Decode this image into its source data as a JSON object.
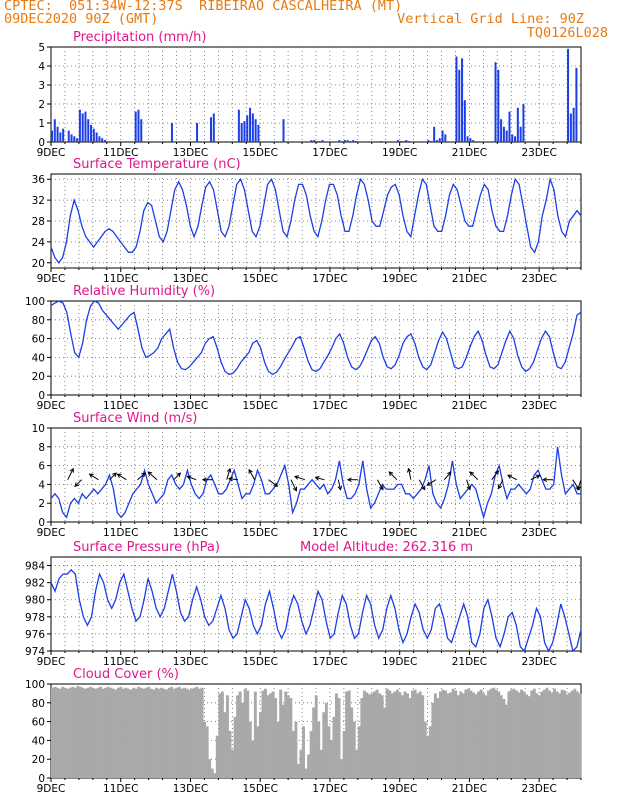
{
  "header": {
    "line1": "CPTEC:  051:34W-12:37S  RIBEIRAO CASCALHEIRA (MT)",
    "line2_left": "09DEC2020 90Z (GMT)",
    "line2_right": "Vertical Grid Line: 90Z",
    "line3_right": "TQ0126L028"
  },
  "model_altitude": "Model Altitude: 262.316 m",
  "colors": {
    "header": "#e87a10",
    "title": "#e0168c",
    "line": "#1c3ee6",
    "bar": "#1c3ee6",
    "cloud": "#a9a9a9"
  },
  "chart_data": [
    {
      "id": "precip",
      "type": "bar",
      "title": "Precipitation (mm/h)",
      "x_ticks": [
        "9DEC",
        "11DEC",
        "13DEC",
        "15DEC",
        "17DEC",
        "19DEC",
        "21DEC",
        "23DEC"
      ],
      "ylim": [
        0,
        5
      ],
      "y_ticks": [
        0,
        1,
        2,
        3,
        4,
        5
      ],
      "x": [
        0,
        0.2,
        0.4,
        0.6,
        0.8,
        1.2,
        1.4,
        1.6,
        1.8,
        2.0,
        2.2,
        2.4,
        2.6,
        2.8,
        3.0,
        3.2,
        3.4,
        3.6,
        3.8,
        6.0,
        6.2,
        6.4,
        8.6,
        10.4,
        11.4,
        11.6,
        13.4,
        13.6,
        13.8,
        14.0,
        14.2,
        14.4,
        14.6,
        14.8,
        16.6,
        18.6,
        18.8,
        19.0,
        19.2,
        19.4,
        20.6,
        20.8,
        21.0,
        21.2,
        21.4,
        21.6,
        21.8,
        23.6,
        24.8,
        25.0,
        25.2,
        25.4,
        25.6,
        27.0,
        27.2,
        27.4,
        27.6,
        27.8,
        28.0,
        28.2,
        29.0,
        29.2,
        29.4,
        29.6,
        29.8,
        30.0,
        30.2,
        31.8,
        32.0,
        32.2,
        32.4,
        32.6,
        32.8,
        33.0,
        33.2,
        33.4,
        33.6,
        33.8,
        37.0,
        37.2,
        37.4,
        37.6
      ],
      "values": [
        0.6,
        1.2,
        0.8,
        0.5,
        0.7,
        0.6,
        0.4,
        0.3,
        0.2,
        1.7,
        1.5,
        1.6,
        1.2,
        0.9,
        0.7,
        0.5,
        0.3,
        0.2,
        0.1,
        1.6,
        1.7,
        1.2,
        1.0,
        1.0,
        1.3,
        1.5,
        1.7,
        1.0,
        1.1,
        1.4,
        1.8,
        1.5,
        1.2,
        0.9,
        1.2,
        0.1,
        0.1,
        0.05,
        0.05,
        0.1,
        0.1,
        0.05,
        0.1,
        0.1,
        0.05,
        0.1,
        0.05,
        0.05,
        0.1,
        0.05,
        0.05,
        0.1,
        0.05,
        0.1,
        0.05,
        0.8,
        0.1,
        0.2,
        0.6,
        0.4,
        4.5,
        3.8,
        4.4,
        2.2,
        0.3,
        0.2,
        0.1,
        4.2,
        3.8,
        1.2,
        0.8,
        0.6,
        1.6,
        0.4,
        0.3,
        1.8,
        0.8,
        2.0,
        4.9,
        1.5,
        1.8,
        3.9
      ]
    },
    {
      "id": "temp",
      "type": "line",
      "title": "Surface Temperature (nC)",
      "x_ticks": [
        "9DEC",
        "11DEC",
        "13DEC",
        "15DEC",
        "17DEC",
        "19DEC",
        "21DEC",
        "23DEC"
      ],
      "ylim": [
        19,
        37
      ],
      "y_ticks": [
        20,
        24,
        28,
        32,
        36
      ],
      "values": [
        23,
        21,
        20,
        21,
        24,
        29,
        32,
        30,
        27,
        25,
        24,
        23,
        24,
        25,
        26,
        26.5,
        26,
        25,
        24,
        23,
        22,
        22,
        23,
        26,
        30,
        31.5,
        31,
        28,
        25,
        24,
        26,
        30,
        34,
        35.5,
        34,
        31,
        27,
        25,
        27,
        31,
        34.5,
        35.5,
        34,
        30,
        26,
        25,
        27,
        31,
        35,
        36,
        34,
        30,
        26,
        25,
        27,
        31,
        35,
        36,
        34,
        30,
        26,
        25,
        28,
        32,
        35,
        35,
        33,
        29,
        26,
        25,
        28,
        32,
        35,
        35,
        33,
        29,
        26,
        26,
        29,
        33,
        36,
        35,
        32,
        28,
        27,
        27,
        30,
        33,
        34.5,
        35,
        33,
        29,
        26,
        25,
        29,
        33,
        36,
        35,
        31,
        27,
        26,
        26,
        29,
        33,
        35,
        34,
        31,
        28,
        27,
        27,
        30,
        33,
        35,
        34,
        30,
        27,
        26,
        26,
        29,
        33,
        36,
        35,
        31,
        27,
        23,
        22,
        24,
        29,
        32,
        36,
        34,
        29,
        26,
        25,
        28,
        29,
        30,
        29
      ],
      "x_start": 0,
      "x_step": 0.28
    },
    {
      "id": "rh",
      "type": "line",
      "title": "Relative Humidity (%)",
      "x_ticks": [
        "9DEC",
        "11DEC",
        "13DEC",
        "15DEC",
        "17DEC",
        "19DEC",
        "21DEC",
        "23DEC"
      ],
      "ylim": [
        0,
        100
      ],
      "y_ticks": [
        0,
        20,
        40,
        60,
        80,
        100
      ],
      "values": [
        95,
        98,
        100,
        98,
        88,
        65,
        45,
        40,
        55,
        80,
        95,
        100,
        98,
        90,
        85,
        80,
        75,
        70,
        75,
        80,
        85,
        88,
        70,
        50,
        40,
        42,
        45,
        50,
        60,
        65,
        70,
        50,
        35,
        28,
        27,
        30,
        35,
        40,
        45,
        55,
        60,
        62,
        50,
        35,
        25,
        22,
        23,
        28,
        35,
        40,
        45,
        55,
        58,
        50,
        35,
        25,
        22,
        24,
        30,
        38,
        45,
        52,
        60,
        62,
        50,
        36,
        27,
        25,
        28,
        35,
        42,
        50,
        60,
        65,
        55,
        40,
        30,
        27,
        30,
        38,
        48,
        58,
        62,
        55,
        40,
        30,
        28,
        32,
        42,
        55,
        62,
        65,
        55,
        40,
        30,
        27,
        32,
        45,
        58,
        67,
        60,
        45,
        30,
        28,
        30,
        40,
        52,
        62,
        68,
        58,
        42,
        30,
        28,
        32,
        45,
        58,
        68,
        60,
        42,
        30,
        25,
        28,
        35,
        48,
        60,
        68,
        62,
        45,
        30,
        28,
        35,
        50,
        65,
        85,
        88
      ],
      "x_start": 0,
      "x_step": 0.28
    },
    {
      "id": "wind",
      "type": "line",
      "title": "Surface Wind (m/s)",
      "x_ticks": [
        "9DEC",
        "11DEC",
        "13DEC",
        "15DEC",
        "17DEC",
        "19DEC",
        "21DEC",
        "23DEC"
      ],
      "ylim": [
        0,
        10
      ],
      "y_ticks": [
        0,
        2,
        4,
        6,
        8,
        10
      ],
      "values": [
        2.5,
        3,
        2.5,
        1,
        0.5,
        2,
        2.5,
        2,
        3,
        2.5,
        3,
        3.5,
        3,
        3.5,
        4,
        5,
        3.5,
        1,
        0.5,
        1,
        2,
        3,
        3.5,
        4,
        5.5,
        4,
        3,
        2,
        2.5,
        3,
        4.5,
        5,
        4,
        3.5,
        4,
        5.5,
        4,
        3,
        2.5,
        3,
        4.5,
        5,
        4,
        3,
        3,
        3.5,
        4.5,
        5.5,
        4,
        2.5,
        3,
        3,
        4,
        5.5,
        4.5,
        3,
        3,
        3.5,
        4,
        5,
        6,
        4,
        1,
        2,
        3.5,
        3.5,
        4,
        4.5,
        4,
        3.5,
        4,
        3,
        3.5,
        4.5,
        6.5,
        4,
        2.5,
        2.5,
        3,
        4,
        6.5,
        3.5,
        1.5,
        2,
        3,
        4,
        3.5,
        3.5,
        3.5,
        4,
        4,
        3,
        3,
        2.5,
        3,
        3.5,
        4.5,
        6,
        3,
        2,
        1.5,
        2.5,
        4,
        6.5,
        4,
        2.5,
        3,
        3.5,
        4,
        3.5,
        2,
        0.5,
        2,
        3,
        5,
        6,
        4,
        2.5,
        3.5,
        3.5,
        4,
        3.5,
        3,
        3.5,
        5,
        5.5,
        4.5,
        3.5,
        3.5,
        4,
        8,
        5,
        3,
        3.5,
        4,
        3,
        3
      ],
      "x_start": 0,
      "x_step": 0.28,
      "arrows": [
        {
          "x": 1.2,
          "u": 0.5,
          "v": 1
        },
        {
          "x": 2.2,
          "u": -0.6,
          "v": -0.6
        },
        {
          "x": 3.4,
          "u": -0.8,
          "v": 0.5
        },
        {
          "x": 4.2,
          "u": 0.6,
          "v": 0.6
        },
        {
          "x": 5.4,
          "u": -0.8,
          "v": 0.5
        },
        {
          "x": 6.2,
          "u": 0.7,
          "v": 0.6
        },
        {
          "x": 7.6,
          "u": -0.8,
          "v": 0.7
        },
        {
          "x": 8.8,
          "u": 0.6,
          "v": 0.6
        },
        {
          "x": 10.4,
          "u": -0.8,
          "v": 0.3
        },
        {
          "x": 11.6,
          "u": -0.9,
          "v": 0
        },
        {
          "x": 12.6,
          "u": 0.3,
          "v": 1
        },
        {
          "x": 13.4,
          "u": -0.8,
          "v": 0.1
        },
        {
          "x": 14.6,
          "u": -0.5,
          "v": 0.9
        },
        {
          "x": 15.6,
          "u": 0.8,
          "v": -0.6
        },
        {
          "x": 17.2,
          "u": 0.5,
          "v": -1
        },
        {
          "x": 18.2,
          "u": -0.9,
          "v": 0.3
        },
        {
          "x": 19.6,
          "u": -0.8,
          "v": 0.2
        },
        {
          "x": 20.6,
          "u": 0.2,
          "v": -0.9
        },
        {
          "x": 22.0,
          "u": -0.9,
          "v": 0
        },
        {
          "x": 23.4,
          "u": 0.5,
          "v": -0.9
        },
        {
          "x": 24.8,
          "u": -0.7,
          "v": 0.7
        },
        {
          "x": 25.8,
          "u": -0.2,
          "v": 1
        },
        {
          "x": 26.4,
          "u": 0.5,
          "v": -0.9
        },
        {
          "x": 27.6,
          "u": -0.8,
          "v": -0.5
        },
        {
          "x": 28.2,
          "u": 0.6,
          "v": 0.7
        },
        {
          "x": 29.8,
          "u": 0.3,
          "v": -0.9
        },
        {
          "x": 30.6,
          "u": -0.7,
          "v": 0.7
        },
        {
          "x": 31.6,
          "u": 0.6,
          "v": 0.8
        },
        {
          "x": 32.4,
          "u": -0.4,
          "v": -0.8
        },
        {
          "x": 33.4,
          "u": -0.8,
          "v": 0.4
        },
        {
          "x": 34.4,
          "u": 0.8,
          "v": 0.4
        },
        {
          "x": 36.0,
          "u": -0.9,
          "v": 0
        },
        {
          "x": 37.4,
          "u": 0.6,
          "v": -0.9
        },
        {
          "x": 38.0,
          "u": -0.3,
          "v": -0.9
        }
      ]
    },
    {
      "id": "press",
      "type": "line",
      "title": "Surface Pressure (hPa)",
      "x_ticks": [
        "9DEC",
        "11DEC",
        "13DEC",
        "15DEC",
        "17DEC",
        "19DEC",
        "21DEC",
        "23DEC"
      ],
      "ylim": [
        974,
        985
      ],
      "y_ticks": [
        974,
        976,
        978,
        980,
        982,
        984
      ],
      "values": [
        982,
        981,
        982.5,
        983,
        983,
        983.5,
        983,
        980,
        978,
        977,
        978,
        981,
        983,
        982,
        980,
        979,
        980,
        982,
        983,
        981,
        979,
        977.5,
        978,
        980,
        982.5,
        981,
        979,
        978,
        979,
        981,
        983,
        981,
        978.5,
        977.5,
        978,
        980,
        981.5,
        980,
        978,
        977,
        977.5,
        979,
        980.5,
        979,
        976.5,
        975.5,
        976,
        978,
        980,
        979,
        977,
        976,
        977,
        979.5,
        981,
        979,
        976.5,
        975.5,
        976.5,
        979,
        980.5,
        979.5,
        977.5,
        976,
        977,
        979,
        981,
        980,
        977.5,
        975.5,
        976,
        978.5,
        980.5,
        979.5,
        977,
        975.5,
        976,
        978.5,
        980.5,
        979.5,
        977,
        975.5,
        976.5,
        979,
        980.5,
        979,
        976.5,
        975,
        976,
        978,
        979.5,
        978.5,
        976.5,
        975.5,
        976.5,
        979,
        979.5,
        978,
        975.5,
        975,
        976.5,
        978,
        979.5,
        978,
        975,
        974.5,
        976,
        979,
        980,
        978,
        975.5,
        974.5,
        976,
        978,
        978.5,
        977,
        974.5,
        974,
        975.5,
        977,
        979,
        978,
        975,
        974,
        975,
        977,
        979.5,
        978,
        976,
        974,
        974.5,
        976.5
      ],
      "x_start": 0,
      "x_step": 0.28
    },
    {
      "id": "cloud",
      "type": "bar",
      "title": "Cloud Cover (%)",
      "x_ticks": [
        "9DEC",
        "11DEC",
        "13DEC",
        "15DEC",
        "17DEC",
        "19DEC",
        "21DEC",
        "23DEC"
      ],
      "ylim": [
        0,
        100
      ],
      "y_ticks": [
        0,
        20,
        40,
        60,
        80,
        100
      ],
      "values": [
        96,
        97,
        96,
        95,
        97,
        96,
        95,
        96,
        97,
        96,
        98,
        97,
        96,
        95,
        96,
        97,
        96,
        95,
        96,
        97,
        95,
        96,
        97,
        96,
        95,
        94,
        96,
        97,
        95,
        96,
        95,
        94,
        96,
        95,
        97,
        96,
        95,
        96,
        97,
        95,
        94,
        96,
        95,
        96,
        95,
        94,
        96,
        97,
        95,
        96,
        97,
        95,
        96,
        95,
        94,
        95,
        96,
        97,
        95,
        96,
        60,
        55,
        20,
        10,
        5,
        45,
        90,
        92,
        70,
        88,
        50,
        30,
        65,
        88,
        92,
        80,
        95,
        93,
        60,
        40,
        92,
        55,
        70,
        93,
        95,
        88,
        90,
        92,
        85,
        60,
        94,
        78,
        92,
        88,
        85,
        50,
        60,
        15,
        30,
        55,
        10,
        25,
        50,
        75,
        88,
        60,
        30,
        70,
        80,
        55,
        40,
        65,
        90,
        85,
        20,
        50,
        92,
        93,
        75,
        60,
        30,
        55,
        85,
        93,
        91,
        89,
        90,
        92,
        94,
        90,
        88,
        75,
        95,
        93,
        90,
        92,
        94,
        91,
        88,
        92,
        90,
        85,
        93,
        94,
        90,
        92,
        88,
        60,
        45,
        55,
        80,
        90,
        85,
        92,
        94,
        93,
        90,
        91,
        95,
        93,
        88,
        92,
        90,
        94,
        95,
        93,
        91,
        89,
        92,
        94,
        90,
        88,
        93,
        95,
        96,
        94,
        92,
        88,
        84,
        78,
        92,
        94,
        95,
        93,
        91,
        94,
        92,
        89,
        87,
        93,
        95,
        90,
        88,
        92,
        94,
        96,
        93,
        91,
        95,
        92,
        90,
        94,
        93,
        89,
        91,
        93,
        95,
        92,
        90
      ],
      "x_start": 0,
      "x_step": 0.2
    }
  ]
}
